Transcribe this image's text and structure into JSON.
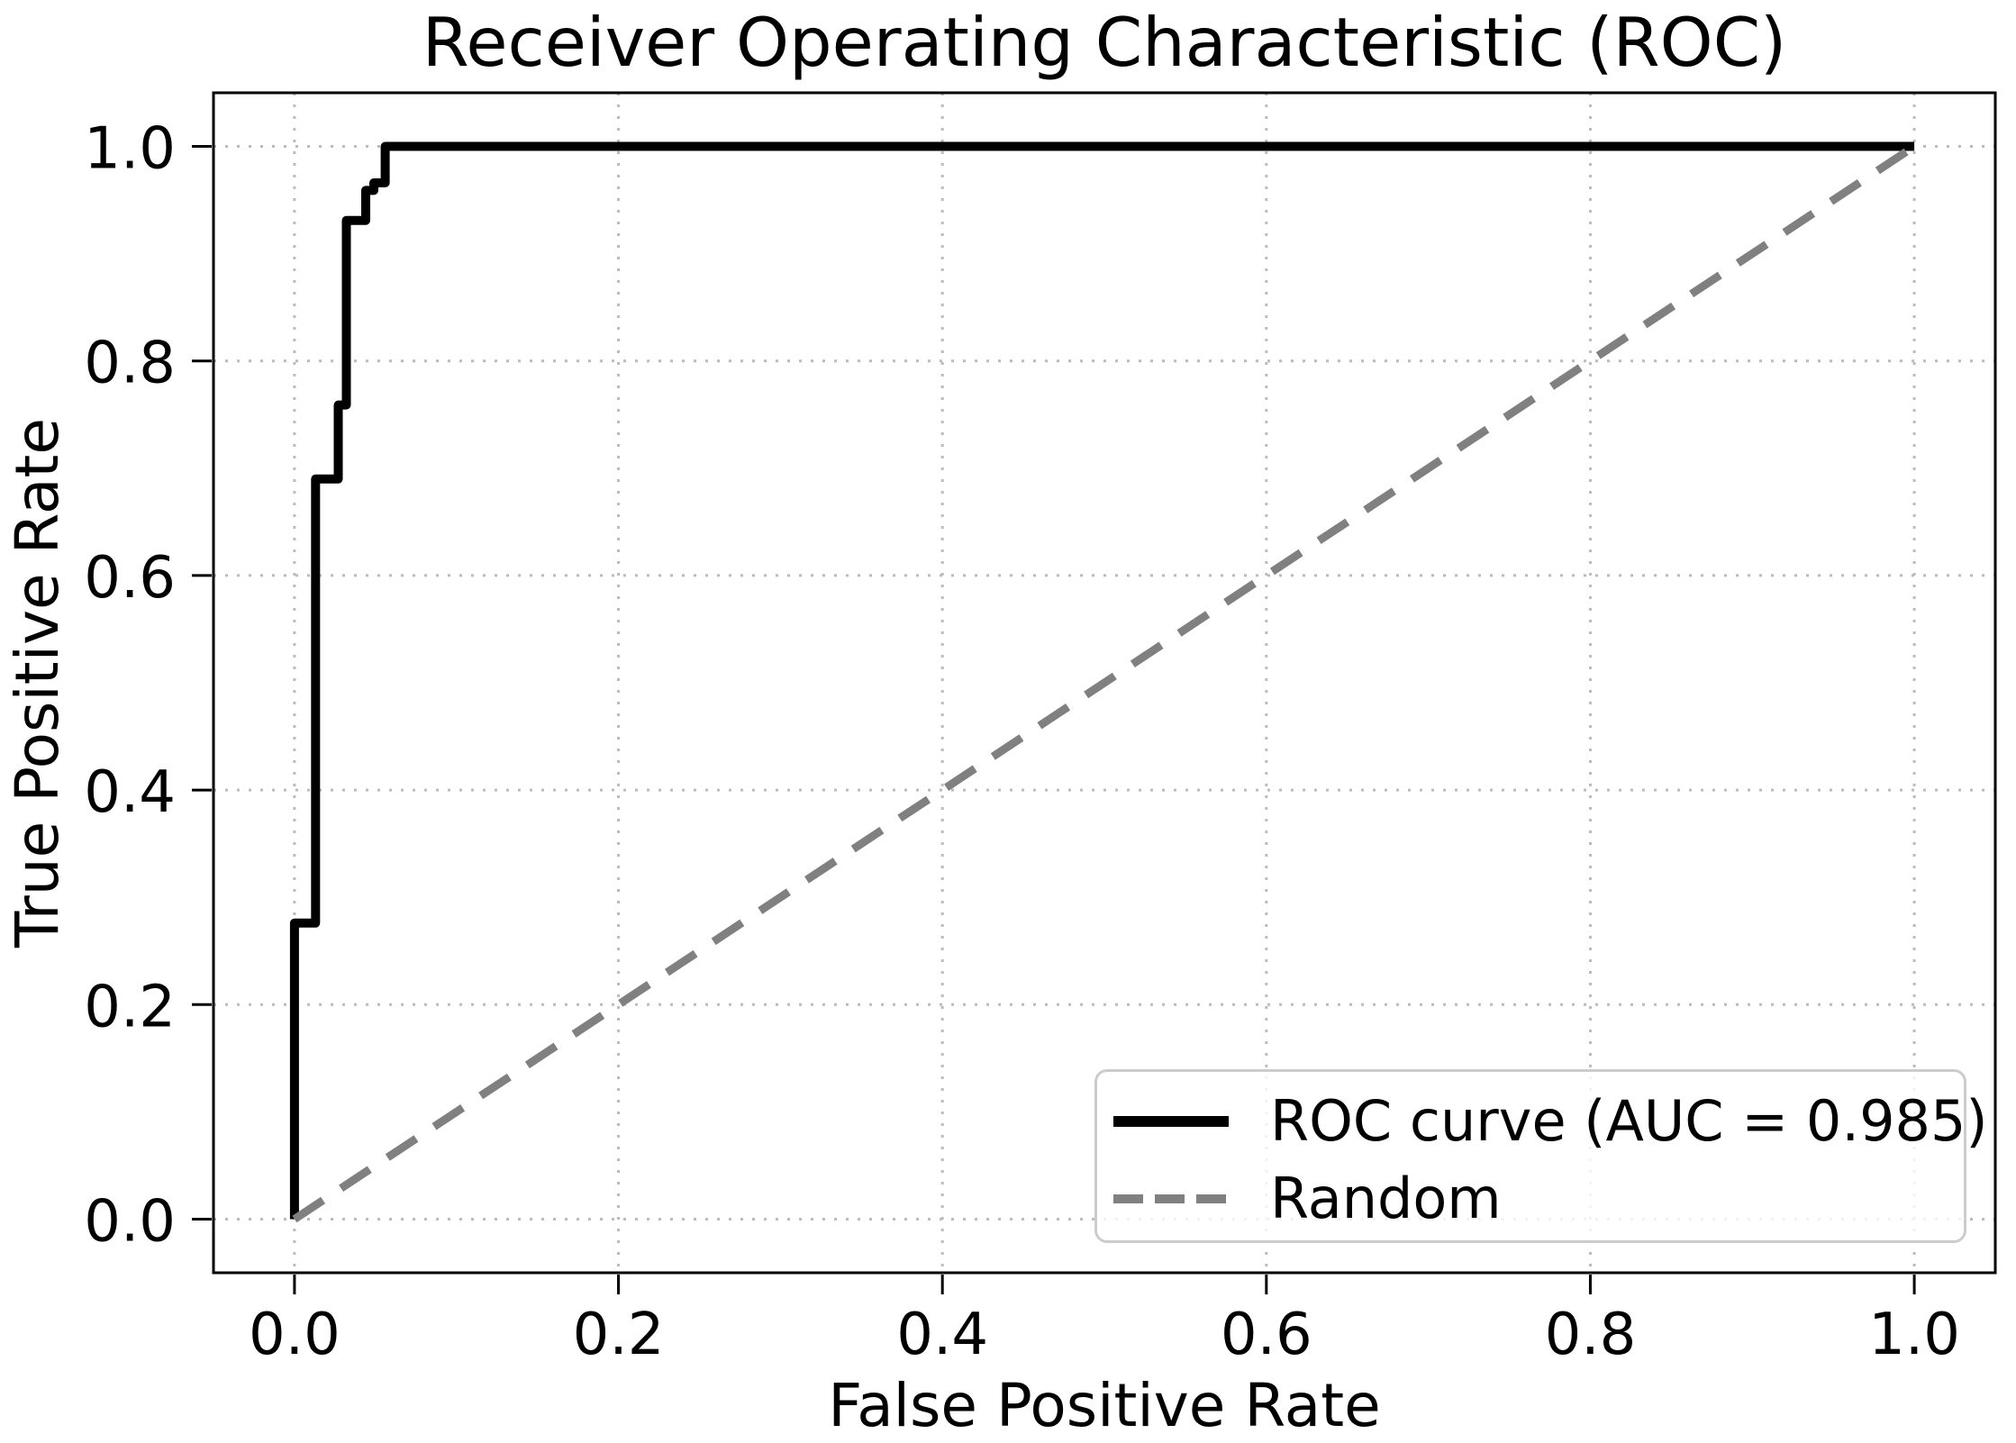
{
  "chart_data": {
    "type": "line",
    "title": "Receiver Operating Characteristic (ROC)",
    "xlabel": "False Positive Rate",
    "ylabel": "True Positive Rate",
    "xlim": [
      -0.05,
      1.05
    ],
    "ylim": [
      -0.05,
      1.05
    ],
    "grid": true,
    "grid_style": "dotted",
    "legend_position": "lower right",
    "auc": 0.985,
    "xticks": {
      "values": [
        0.0,
        0.2,
        0.4,
        0.6,
        0.8,
        1.0
      ],
      "labels": [
        "0.0",
        "0.2",
        "0.4",
        "0.6",
        "0.8",
        "1.0"
      ]
    },
    "yticks": {
      "values": [
        0.0,
        0.2,
        0.4,
        0.6,
        0.8,
        1.0
      ],
      "labels": [
        "0.0",
        "0.2",
        "0.4",
        "0.6",
        "0.8",
        "1.0"
      ]
    },
    "series": [
      {
        "name": "ROC curve (AUC = 0.985)",
        "data_name": "roc-curve-line",
        "style": "solid-step",
        "color": "#000000",
        "linewidth": 10,
        "dash": null,
        "points": [
          [
            0.0,
            0.0
          ],
          [
            0.0,
            0.276
          ],
          [
            0.013,
            0.276
          ],
          [
            0.013,
            0.69
          ],
          [
            0.027,
            0.69
          ],
          [
            0.027,
            0.759
          ],
          [
            0.032,
            0.759
          ],
          [
            0.032,
            0.931
          ],
          [
            0.044,
            0.931
          ],
          [
            0.044,
            0.959
          ],
          [
            0.049,
            0.959
          ],
          [
            0.049,
            0.966
          ],
          [
            0.056,
            0.966
          ],
          [
            0.056,
            1.0
          ],
          [
            1.0,
            1.0
          ]
        ]
      },
      {
        "name": "Random",
        "data_name": "random-baseline-line",
        "style": "dashed",
        "color": "#808080",
        "linewidth": 9,
        "dash": "38 24",
        "points": [
          [
            0.0,
            0.0
          ],
          [
            1.0,
            1.0
          ]
        ]
      }
    ],
    "legend": {
      "entries": [
        {
          "label": "ROC curve (AUC = 0.985)",
          "color": "#000000",
          "dash": null,
          "sample_linewidth": 12,
          "sample_name": "legend-roc-sample-line"
        },
        {
          "label": "Random",
          "color": "#808080",
          "dash": "33 13",
          "sample_linewidth": 10,
          "sample_name": "legend-random-sample-line"
        }
      ]
    },
    "colors": {
      "background": "#ffffff",
      "spine": "#000000",
      "grid": "#bbbbbb",
      "tick": "#000000",
      "legend_border": "#cccccc"
    }
  }
}
